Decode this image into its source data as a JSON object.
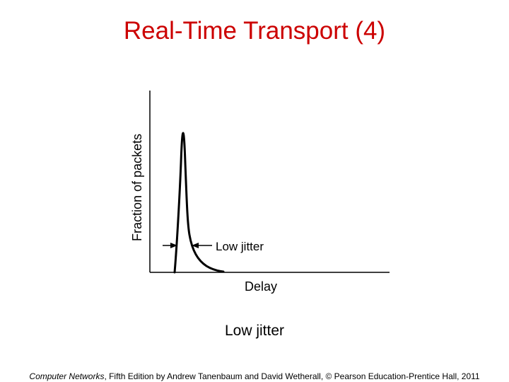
{
  "slide": {
    "title": "Real-Time Transport (4)",
    "caption": "Low jitter"
  },
  "figure": {
    "y_axis_label": "Fraction of packets",
    "x_axis_label": "Delay",
    "annotation": "Low jitter"
  },
  "footer": {
    "book": "Computer Networks",
    "rest": ", Fifth Edition by Andrew Tanenbaum and David Wetherall, © Pearson Education-Prentice Hall, 2011"
  },
  "colors": {
    "title": "#cc0000",
    "text": "#000000",
    "background": "#ffffff"
  }
}
